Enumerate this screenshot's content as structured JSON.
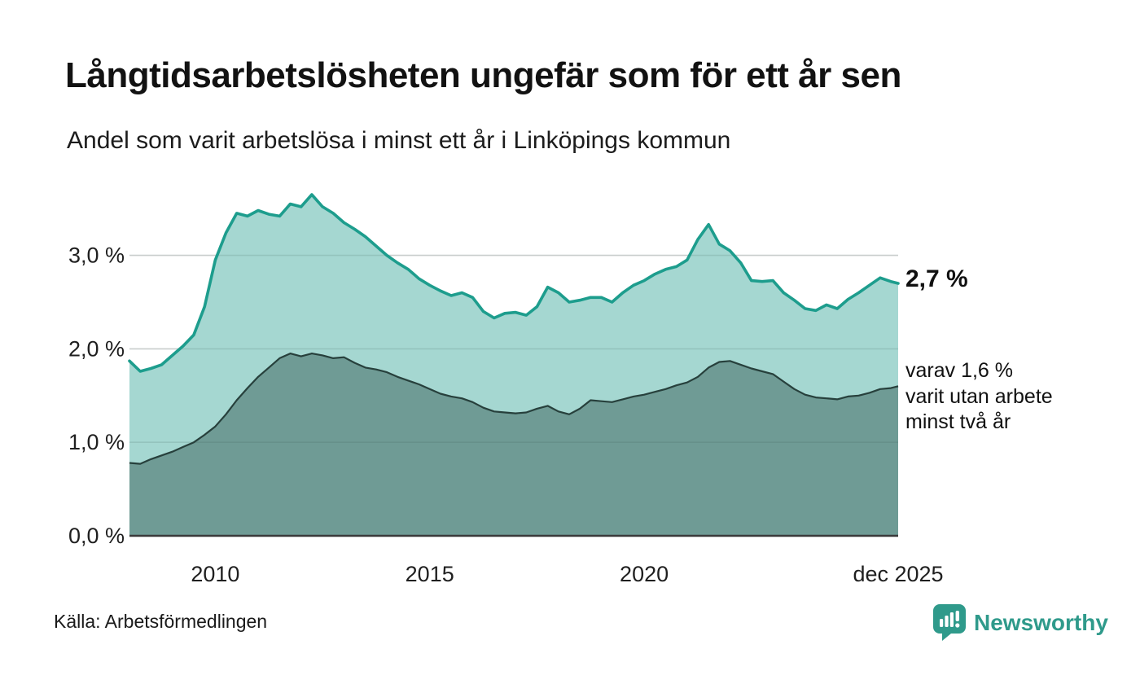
{
  "footer": {
    "source": "Källa: Arbetsförmedlingen",
    "brand": "Newsworthy"
  },
  "colors": {
    "accent_teal": "#1d9d8d",
    "light_fill": "#a5d7d1",
    "dark_fill": "#6f9b95",
    "dark_line": "#27403c",
    "gridline": "#e2e2e2",
    "baseline": "#3a3a3a",
    "brand_teal": "#2f9a8b",
    "text": "#1f1f1f"
  },
  "chart_data": {
    "type": "area",
    "title": "Långtidsarbetslösheten ungefär som för ett år sen",
    "subtitle": "Andel som varit arbetslösa i minst ett år i Linköpings kommun",
    "unit": "%",
    "grid": true,
    "legend_position": "right-annotations",
    "xlim": [
      2008,
      2025.92
    ],
    "ylim": [
      0,
      3.8
    ],
    "x": [
      2008,
      2008.25,
      2008.5,
      2008.75,
      2009,
      2009.25,
      2009.5,
      2009.75,
      2010,
      2010.25,
      2010.5,
      2010.75,
      2011,
      2011.25,
      2011.5,
      2011.75,
      2012,
      2012.25,
      2012.5,
      2012.75,
      2013,
      2013.25,
      2013.5,
      2013.75,
      2014,
      2014.25,
      2014.5,
      2014.75,
      2015,
      2015.25,
      2015.5,
      2015.75,
      2016,
      2016.25,
      2016.5,
      2016.75,
      2017,
      2017.25,
      2017.5,
      2017.75,
      2018,
      2018.25,
      2018.5,
      2018.75,
      2019,
      2019.25,
      2019.5,
      2019.75,
      2020,
      2020.25,
      2020.5,
      2020.75,
      2021,
      2021.25,
      2021.5,
      2021.75,
      2022,
      2022.25,
      2022.5,
      2022.75,
      2023,
      2023.25,
      2023.5,
      2023.75,
      2024,
      2024.25,
      2024.5,
      2024.75,
      2025,
      2025.25,
      2025.5,
      2025.75,
      2025.92
    ],
    "series": [
      {
        "name": "Andel arbetslösa minst ett år",
        "line_color": "#1d9d8d",
        "fill_color": "#a5d7d1",
        "end_value": 2.7,
        "values": [
          1.87,
          1.76,
          1.79,
          1.83,
          1.93,
          2.03,
          2.15,
          2.45,
          2.95,
          3.24,
          3.45,
          3.42,
          3.48,
          3.44,
          3.42,
          3.55,
          3.52,
          3.65,
          3.52,
          3.45,
          3.35,
          3.28,
          3.2,
          3.1,
          3.0,
          2.92,
          2.85,
          2.75,
          2.68,
          2.62,
          2.57,
          2.6,
          2.55,
          2.4,
          2.33,
          2.38,
          2.39,
          2.36,
          2.45,
          2.66,
          2.6,
          2.5,
          2.52,
          2.55,
          2.55,
          2.5,
          2.6,
          2.68,
          2.73,
          2.8,
          2.85,
          2.88,
          2.95,
          3.17,
          3.33,
          3.12,
          3.05,
          2.92,
          2.73,
          2.72,
          2.73,
          2.6,
          2.52,
          2.43,
          2.41,
          2.47,
          2.43,
          2.53,
          2.6,
          2.68,
          2.76,
          2.72,
          2.7
        ]
      },
      {
        "name": "Varav utan arbete minst två år",
        "line_color": "#27403c",
        "fill_color": "#6f9b95",
        "end_value": 1.6,
        "values": [
          0.78,
          0.77,
          0.82,
          0.86,
          0.9,
          0.95,
          1.0,
          1.08,
          1.17,
          1.3,
          1.45,
          1.58,
          1.7,
          1.8,
          1.9,
          1.95,
          1.92,
          1.95,
          1.93,
          1.9,
          1.91,
          1.85,
          1.8,
          1.78,
          1.75,
          1.7,
          1.66,
          1.62,
          1.57,
          1.52,
          1.49,
          1.47,
          1.43,
          1.37,
          1.33,
          1.32,
          1.31,
          1.32,
          1.36,
          1.39,
          1.33,
          1.3,
          1.36,
          1.45,
          1.44,
          1.43,
          1.46,
          1.49,
          1.51,
          1.54,
          1.57,
          1.61,
          1.64,
          1.7,
          1.8,
          1.86,
          1.87,
          1.83,
          1.79,
          1.76,
          1.73,
          1.65,
          1.57,
          1.51,
          1.48,
          1.47,
          1.46,
          1.49,
          1.5,
          1.53,
          1.57,
          1.58,
          1.6
        ]
      }
    ],
    "yticks": [
      {
        "value": 0,
        "label": "0,0 %"
      },
      {
        "value": 1,
        "label": "1,0 %"
      },
      {
        "value": 2,
        "label": "2,0 %"
      },
      {
        "value": 3,
        "label": "3,0 %"
      }
    ],
    "xticks": [
      {
        "value": 2010,
        "label": "2010"
      },
      {
        "value": 2015,
        "label": "2015"
      },
      {
        "value": 2020,
        "label": "2020"
      },
      {
        "value": 2025.92,
        "label": "dec 2025"
      }
    ],
    "annotations": {
      "total": "2,7 %",
      "sub_lines": [
        "varav 1,6 %",
        "varit utan arbete",
        "minst två år"
      ]
    }
  }
}
